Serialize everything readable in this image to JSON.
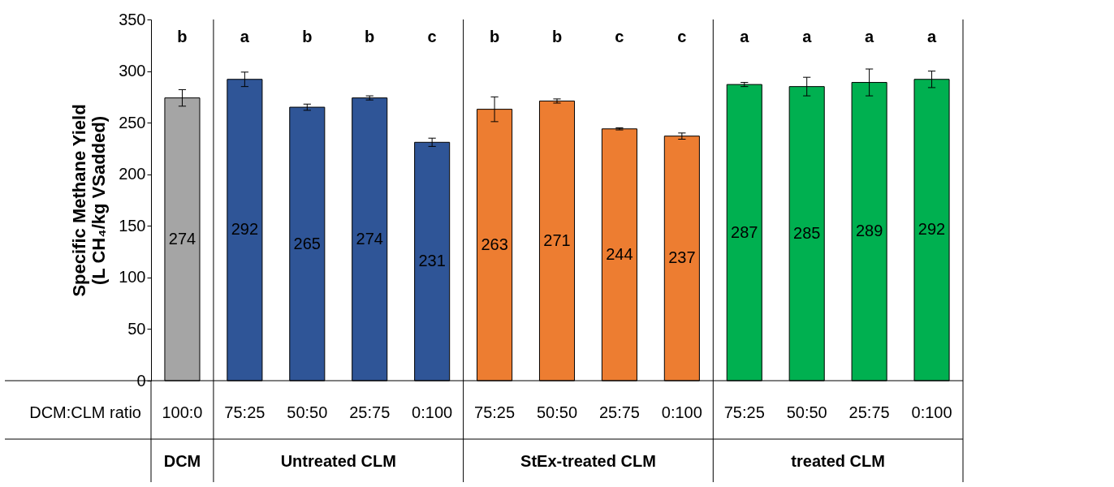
{
  "chart_data": {
    "type": "bar",
    "ylabel": "Specific Methane Yield (L CH₄/kg VSadded)",
    "categories": [
      "100:0",
      "75:25",
      "50:50",
      "25:75",
      "0:100",
      "75:25",
      "50:50",
      "25:75",
      "0:100",
      "75:25",
      "50:50",
      "25:75",
      "0:100"
    ],
    "values": [
      274,
      292,
      265,
      274,
      231,
      263,
      271,
      244,
      237,
      287,
      285,
      289,
      292
    ],
    "colors": [
      "#a5a5a5",
      "#2f5597",
      "#2f5597",
      "#2f5597",
      "#2f5597",
      "#ed7d31",
      "#ed7d31",
      "#ed7d31",
      "#ed7d31",
      "#00b050",
      "#00b050",
      "#00b050",
      "#00b050"
    ],
    "errors": [
      8,
      7,
      3,
      2,
      4,
      12,
      2,
      1,
      3,
      2,
      9,
      13,
      8
    ],
    "data_labels": true,
    "ylim": [
      0,
      350
    ],
    "yticks": [
      0,
      50,
      100,
      150,
      200,
      250,
      300,
      350
    ],
    "grid": false,
    "annotations": [
      "b",
      "a",
      "b",
      "b",
      "c",
      "b",
      "b",
      "c",
      "c",
      "a",
      "a",
      "a",
      "a",
      "DCM:CLM ratio",
      "DCM",
      "Untreated CLM",
      "StEx-treated CLM",
      "treated CLM"
    ]
  }
}
